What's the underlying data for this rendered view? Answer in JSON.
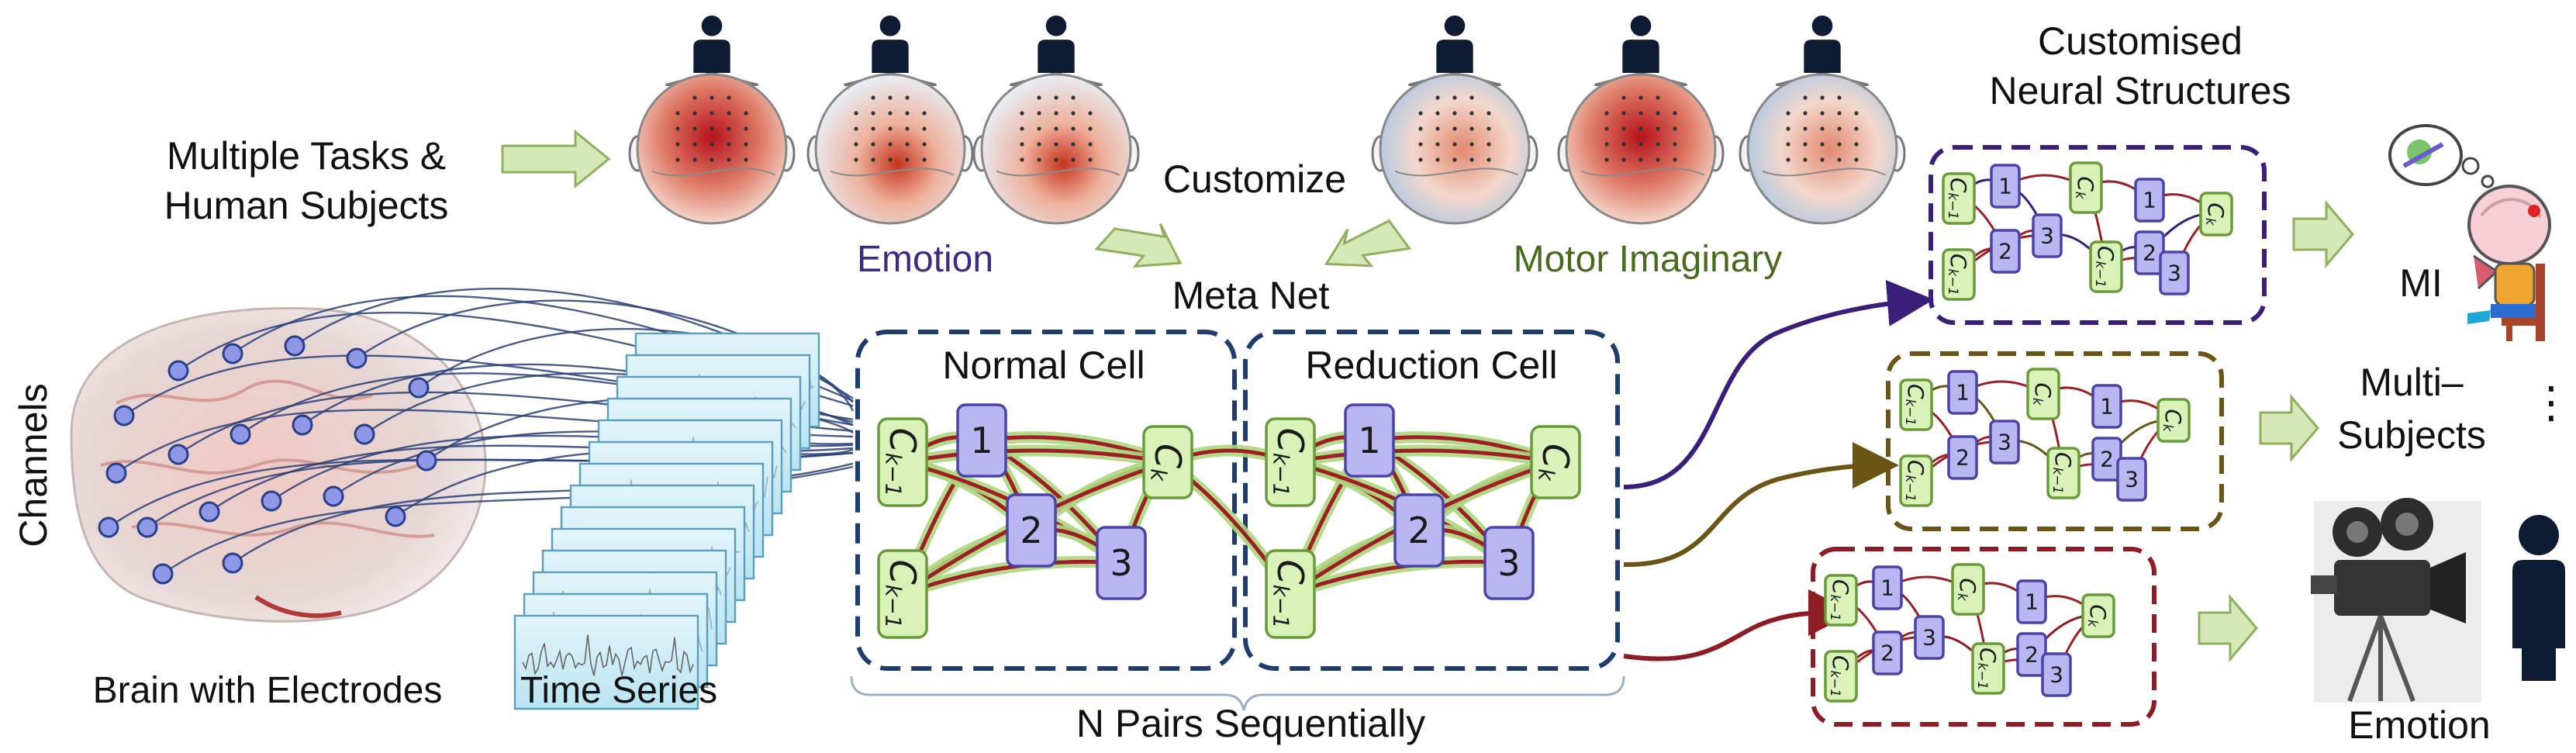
{
  "labels": {
    "multiple_tasks_line1": "Multiple Tasks &",
    "multiple_tasks_line2": "Human Subjects",
    "emotion_top": "Emotion",
    "motor_imaginary": "Motor Imaginary",
    "customize": "Customize",
    "meta_net": "Meta Net",
    "normal_cell": "Normal Cell",
    "reduction_cell": "Reduction Cell",
    "channels": "Channels",
    "brain_with_electrodes": "Brain with Electrodes",
    "time_series": "Time Series",
    "n_pairs": "N Pairs Sequentially",
    "customised_line1": "Customised",
    "customised_line2": "Neural Structures",
    "mi": "MI",
    "multi_line1": "Multi–",
    "multi_line2": "Subjects",
    "ellipsis": "⋮",
    "emotion_bottom": "Emotion"
  },
  "nodes": {
    "ck_sub": "k",
    "ck1_sub": "k−1",
    "n1": "1",
    "n2": "2",
    "n3": "3"
  },
  "colors": {
    "emotion_text": "#3c2a86",
    "motor_text": "#4a6b1e",
    "meta_box": "#1f3c6e",
    "struct_mi": "#3a1e7a",
    "struct_multi": "#6b5515",
    "struct_emotion": "#8e1c24",
    "edge_red": "#9c1f24",
    "edge_glow": "#aed67f",
    "node_green": "#d8f2b8",
    "node_green_stroke": "#6a9a3a",
    "node_purple": "#b9b6f2",
    "node_purple_stroke": "#4b44a8",
    "arrow_fill": "#d6e7b8"
  },
  "icons": {
    "person": "person-icon",
    "topomap": "eeg-topomap-icon",
    "brain": "brain-electrodes-icon",
    "camera": "movie-camera-icon",
    "cartoon": "thinking-cartoon-icon"
  }
}
